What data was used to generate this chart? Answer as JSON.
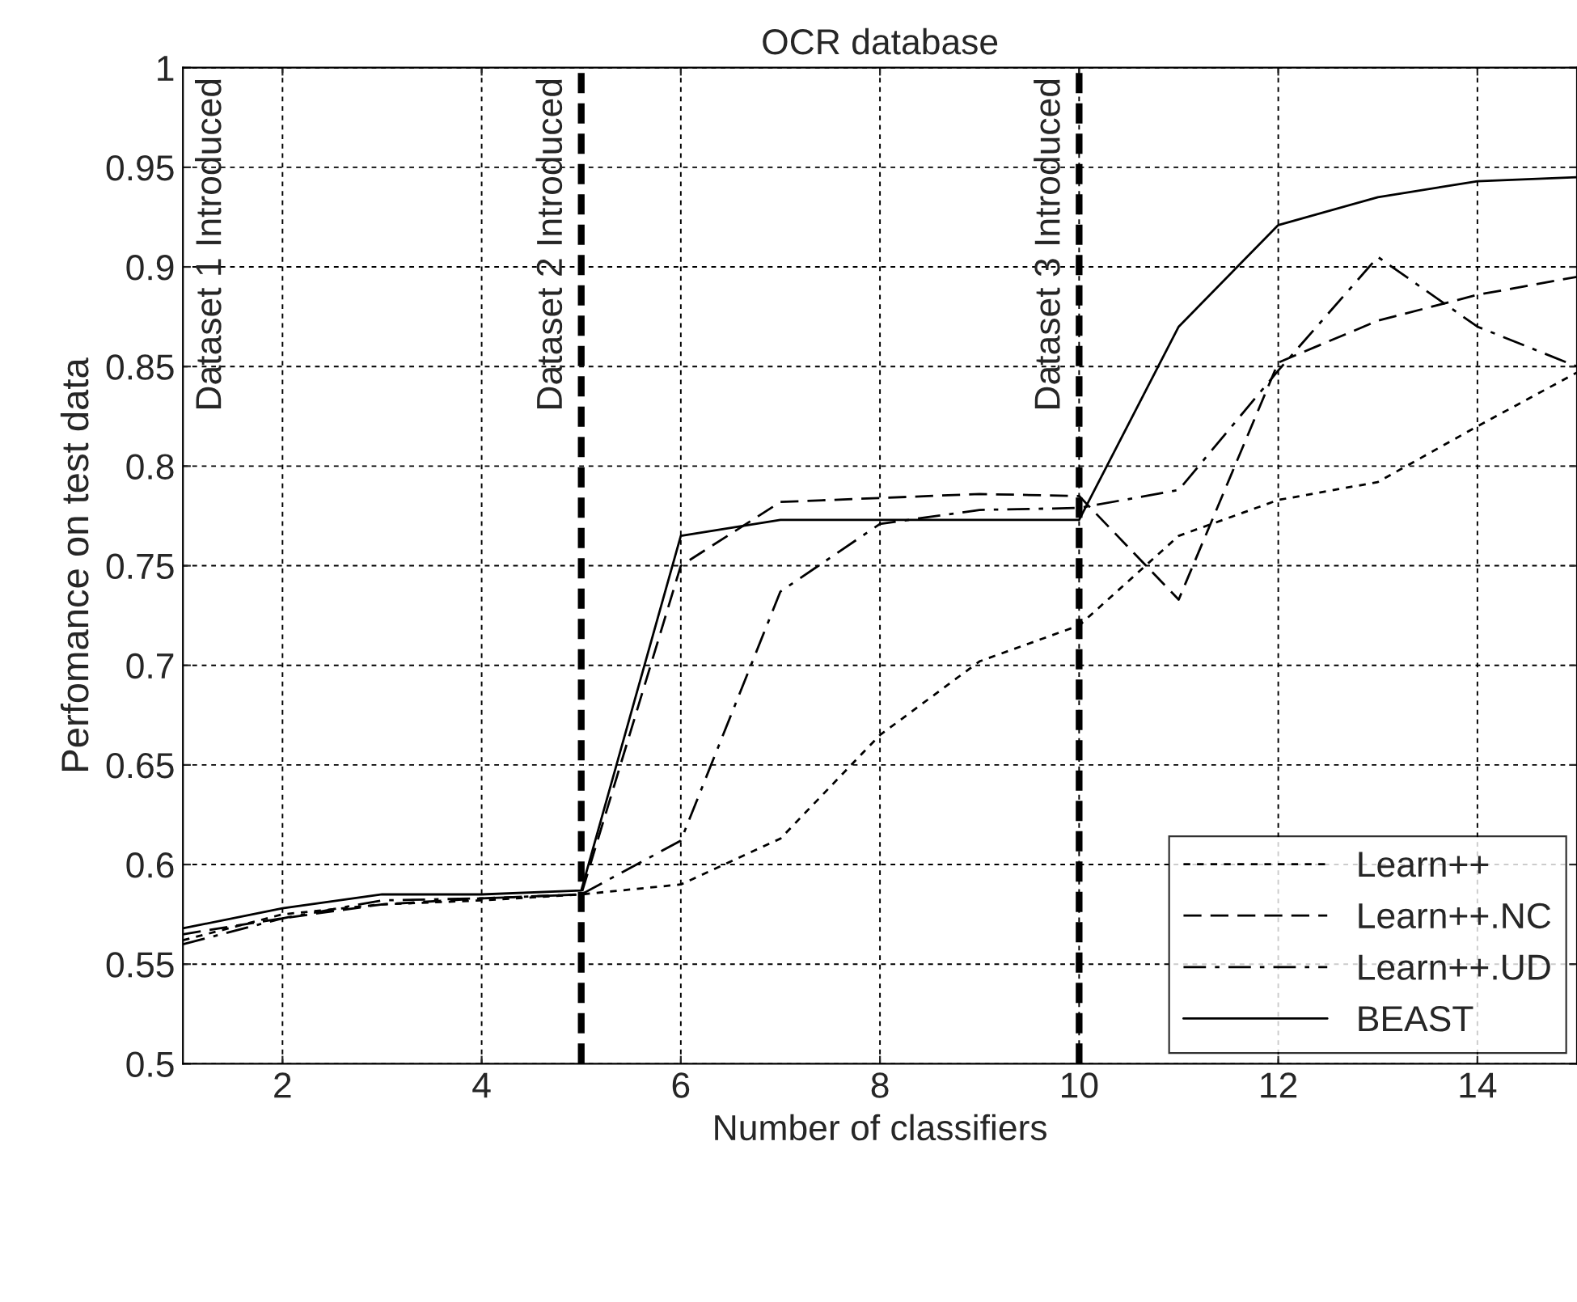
{
  "chart_data": {
    "type": "line",
    "title": "OCR database",
    "xlabel": "Number of classifiers",
    "ylabel": "Perfomance on test data",
    "x": [
      1,
      2,
      3,
      4,
      5,
      6,
      7,
      8,
      9,
      10,
      11,
      12,
      13,
      14,
      15
    ],
    "series": [
      {
        "name": "Learn++",
        "color": "#000000",
        "line_style": "dotted",
        "values": [
          0.562,
          0.575,
          0.58,
          0.582,
          0.585,
          0.59,
          0.613,
          0.665,
          0.702,
          0.72,
          0.765,
          0.783,
          0.792,
          0.82,
          0.847
        ]
      },
      {
        "name": "Learn++.NC",
        "color": "#000000",
        "line_style": "dashed",
        "values": [
          0.565,
          0.573,
          0.58,
          0.583,
          0.585,
          0.75,
          0.782,
          0.784,
          0.786,
          0.785,
          0.733,
          0.852,
          0.873,
          0.886,
          0.895
        ]
      },
      {
        "name": "Learn++.UD",
        "color": "#000000",
        "line_style": "dashdot",
        "values": [
          0.56,
          0.573,
          0.582,
          0.583,
          0.585,
          0.612,
          0.737,
          0.771,
          0.778,
          0.779,
          0.788,
          0.848,
          0.905,
          0.87,
          0.85
        ]
      },
      {
        "name": "BEAST",
        "color": "#000000",
        "line_style": "solid",
        "values": [
          0.568,
          0.578,
          0.585,
          0.585,
          0.587,
          0.765,
          0.773,
          0.773,
          0.773,
          0.773,
          0.87,
          0.921,
          0.935,
          0.943,
          0.945
        ]
      }
    ],
    "xlim": [
      1,
      15
    ],
    "xticks": [
      2,
      4,
      6,
      8,
      10,
      12,
      14
    ],
    "ylim": [
      0.5,
      1
    ],
    "yticks": [
      0.5,
      0.55,
      0.6,
      0.65,
      0.7,
      0.75,
      0.8,
      0.85,
      0.9,
      0.95,
      1
    ],
    "ref_lines": [
      {
        "axis": "x",
        "value": 5,
        "label": "Dataset 2 Introduced",
        "color": "#000000",
        "line_style": "dashed"
      },
      {
        "axis": "x",
        "value": 10,
        "label": "Dataset 3 Introduced",
        "color": "#000000",
        "line_style": "dashed"
      }
    ],
    "annotations": [
      "Dataset 1 Introduced"
    ],
    "grid": true,
    "legend": "bottom right",
    "marker": "none"
  }
}
